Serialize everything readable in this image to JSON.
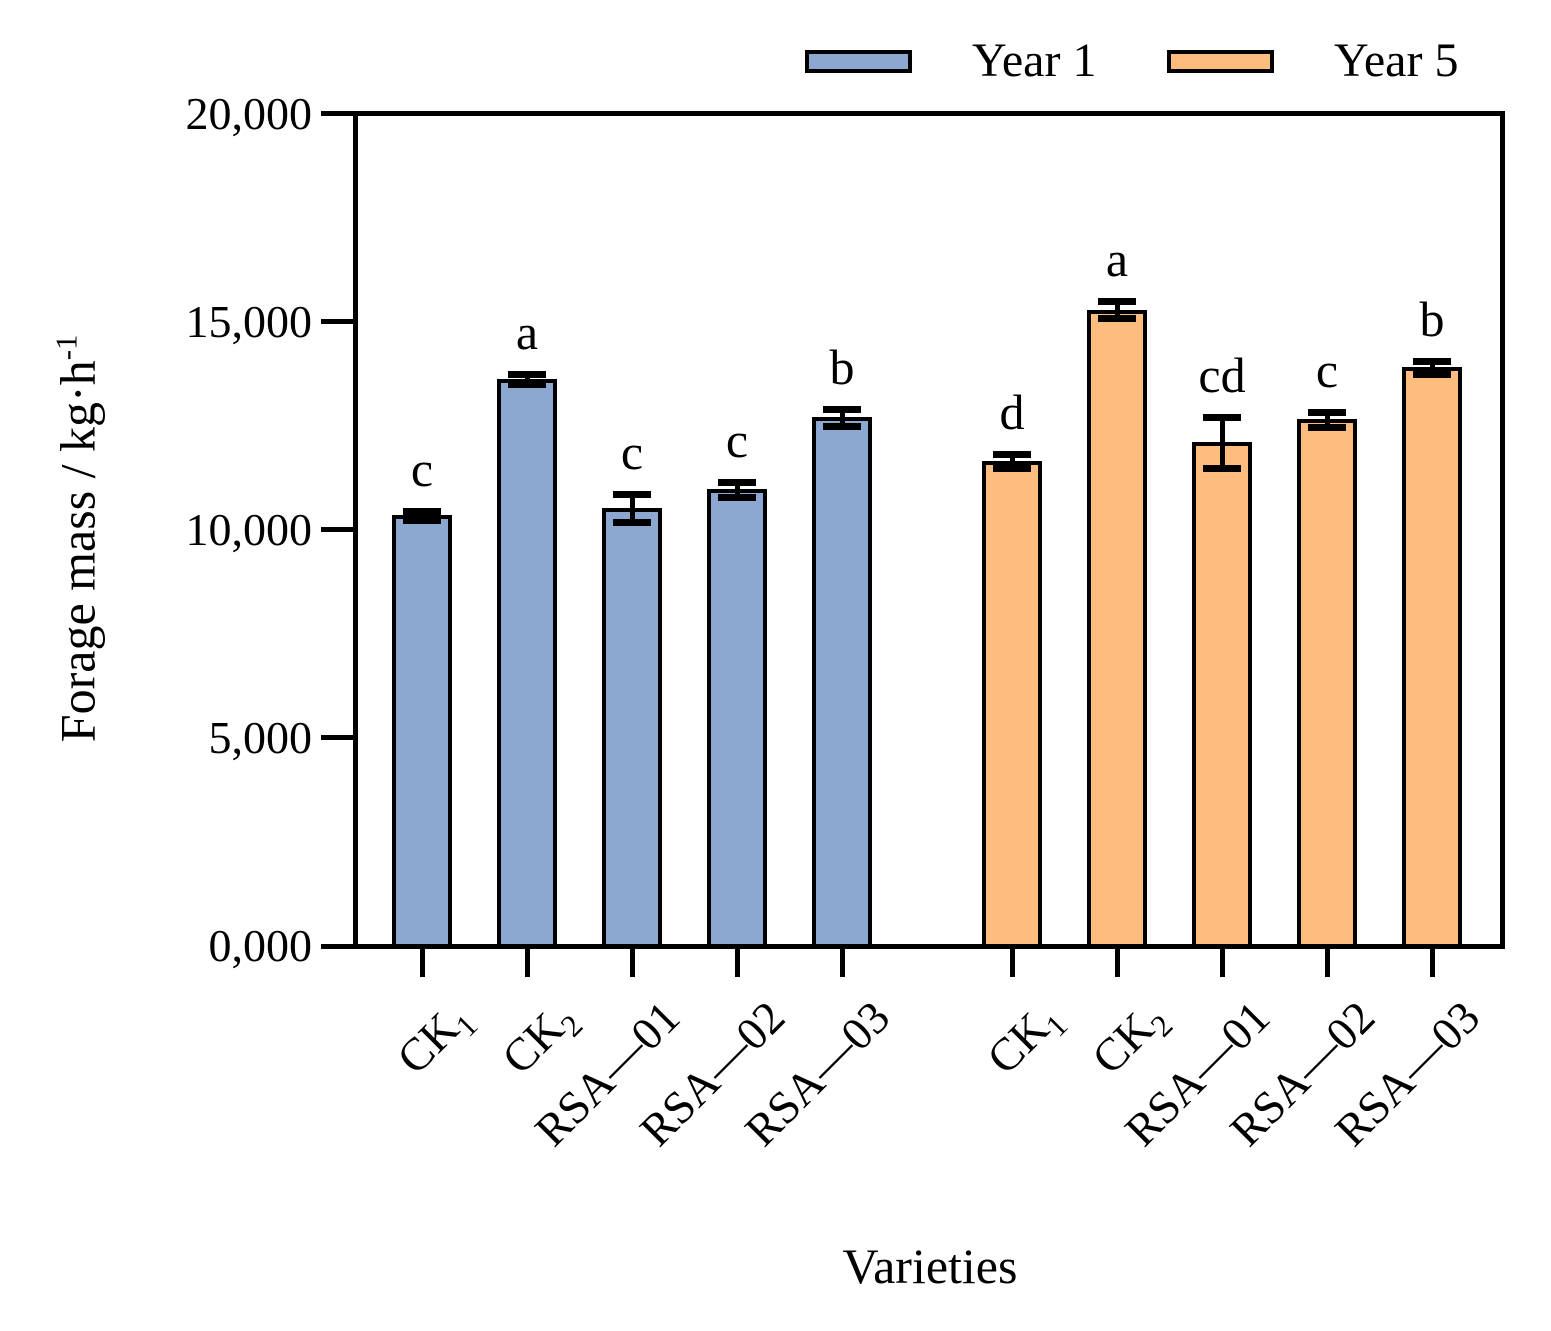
{
  "chart_data": {
    "type": "bar",
    "title": "",
    "xlabel": "Varieties",
    "ylabel_text": "Forage mass / kg·h",
    "ylabel_sup": "-1",
    "ylim": [
      0,
      20000
    ],
    "grid": false,
    "legend_position": "top-right",
    "bar_edge_color": "#000000",
    "yticks": [
      {
        "value": 0,
        "label": "0,000"
      },
      {
        "value": 5000,
        "label": "5,000"
      },
      {
        "value": 10000,
        "label": "10,000"
      },
      {
        "value": 15000,
        "label": "15,000"
      },
      {
        "value": 20000,
        "label": "20,000"
      }
    ],
    "categories": [
      {
        "text": "CK",
        "sub": "1"
      },
      {
        "text": "CK",
        "sub": "2"
      },
      {
        "text": "RSA—01",
        "sub": ""
      },
      {
        "text": "RSA—02",
        "sub": ""
      },
      {
        "text": "RSA—03",
        "sub": ""
      }
    ],
    "series": [
      {
        "name": "Year 1",
        "color": "#8CA8D0",
        "values": [
          10350,
          13630,
          10530,
          10970,
          12700
        ],
        "errors": [
          110,
          120,
          340,
          180,
          200
        ],
        "letters": [
          "c",
          "a",
          "c",
          "c",
          "b"
        ]
      },
      {
        "name": "Year 5",
        "color": "#FCBD7E",
        "values": [
          11650,
          15290,
          12100,
          12650,
          13900
        ],
        "errors": [
          170,
          200,
          620,
          190,
          160
        ],
        "letters": [
          "d",
          "a",
          "cd",
          "c",
          "b"
        ]
      }
    ]
  }
}
